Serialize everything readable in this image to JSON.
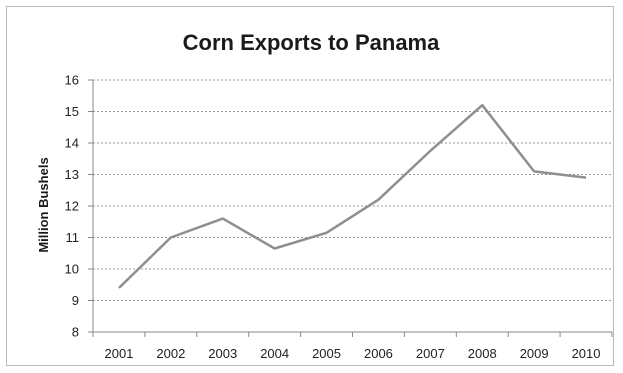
{
  "chart_data": {
    "type": "line",
    "title": "Corn Exports to Panama",
    "xlabel": "",
    "ylabel": "Million Bushels",
    "categories": [
      "2001",
      "2002",
      "2003",
      "2004",
      "2005",
      "2006",
      "2007",
      "2008",
      "2009",
      "2010"
    ],
    "series": [
      {
        "values": [
          9.4,
          11.0,
          11.6,
          10.65,
          11.15,
          12.2,
          13.75,
          15.2,
          13.1,
          12.9
        ]
      }
    ],
    "ylim": [
      8,
      16
    ],
    "yticks": [
      "8",
      "9",
      "10",
      "11",
      "12",
      "13",
      "14",
      "15",
      "16"
    ],
    "grid": true,
    "legend": "none",
    "line_color": "#8f8f8f"
  }
}
